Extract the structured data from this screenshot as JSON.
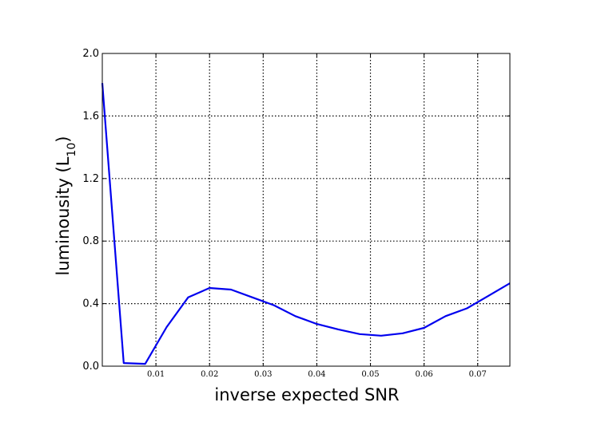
{
  "chart_data": {
    "type": "line",
    "xlabel": "inverse expected SNR",
    "ylabel_main": "luminousity (L",
    "ylabel_sub": "10",
    "ylabel_close": ")",
    "xlim": [
      0.0,
      0.076
    ],
    "ylim": [
      0.0,
      2.0
    ],
    "x_ticks": [
      0.01,
      0.02,
      0.03,
      0.04,
      0.05,
      0.06,
      0.07
    ],
    "x_tick_labels": [
      "0.01",
      "0.02",
      "0.03",
      "0.04",
      "0.05",
      "0.06",
      "0.07"
    ],
    "y_ticks": [
      0.0,
      0.4,
      0.8,
      1.2,
      1.6,
      2.0
    ],
    "y_tick_labels": [
      "0.0",
      "0.4",
      "0.8",
      "1.2",
      "1.6",
      "2.0"
    ],
    "grid": true,
    "series": [
      {
        "color": "#0000ee",
        "x": [
          0.0,
          0.004,
          0.008,
          0.012,
          0.016,
          0.02,
          0.024,
          0.028,
          0.032,
          0.036,
          0.04,
          0.044,
          0.048,
          0.052,
          0.056,
          0.06,
          0.064,
          0.068,
          0.072,
          0.076
        ],
        "y": [
          1.81,
          0.02,
          0.015,
          0.25,
          0.44,
          0.5,
          0.49,
          0.44,
          0.39,
          0.32,
          0.27,
          0.235,
          0.205,
          0.195,
          0.21,
          0.245,
          0.32,
          0.37,
          0.45,
          0.53
        ]
      }
    ]
  }
}
